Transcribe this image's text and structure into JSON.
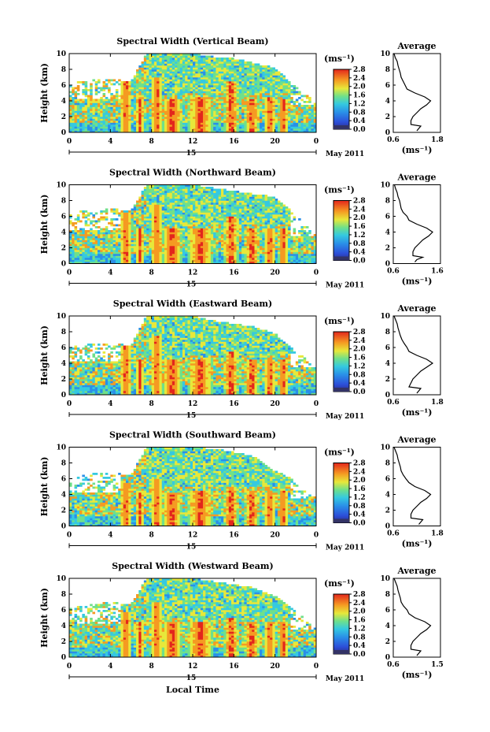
{
  "page": {
    "date_label": "May 2011",
    "day_label": "15",
    "xlabel": "Local Time",
    "ylabel": "Height (km)",
    "cb_unit": "(ms⁻¹)",
    "avg_title": "Average",
    "avg_unit": "(ms⁻¹)"
  },
  "chart_data": [
    {
      "type": "heatmap",
      "title": "Spectral Width (Vertical Beam)",
      "xlabel": "Local Time",
      "ylabel": "Height (km)",
      "xlim": [
        0,
        24
      ],
      "ylim": [
        0,
        10
      ],
      "xticks": [
        "0",
        "4",
        "8",
        "12",
        "16",
        "20",
        "0"
      ],
      "yticks": [
        "0",
        "2",
        "4",
        "6",
        "8",
        "10"
      ],
      "colorbar": {
        "unit": "(ms⁻¹)",
        "min": 0.0,
        "max": 2.8,
        "ticks": [
          "0.0",
          "0.4",
          "0.8",
          "1.2",
          "1.6",
          "2.0",
          "2.4",
          "2.8"
        ]
      },
      "cloud_top_km": [
        [
          0,
          6.2
        ],
        [
          2,
          6.6
        ],
        [
          4,
          6.8
        ],
        [
          6,
          6.4
        ],
        [
          7.5,
          10
        ],
        [
          12,
          10
        ],
        [
          14,
          9.6
        ],
        [
          16,
          9.4
        ],
        [
          18,
          8.8
        ],
        [
          20,
          8.2
        ],
        [
          22,
          5.8
        ],
        [
          23,
          5.0
        ],
        [
          24,
          3.6
        ]
      ],
      "convective_bursts": [
        {
          "start": 5.0,
          "end": 6.0,
          "top_km": 6.5
        },
        {
          "start": 6.5,
          "end": 7.3,
          "top_km": 4.5
        },
        {
          "start": 8.0,
          "end": 9.0,
          "top_km": 7.0
        },
        {
          "start": 9.0,
          "end": 11.0,
          "top_km": 4.2
        },
        {
          "start": 11.5,
          "end": 14.0,
          "top_km": 4.5
        },
        {
          "start": 15.0,
          "end": 16.5,
          "top_km": 6.5
        },
        {
          "start": 17.0,
          "end": 18.5,
          "top_km": 4.2
        },
        {
          "start": 19.0,
          "end": 20.0,
          "top_km": 4.5
        },
        {
          "start": 20.3,
          "end": 21.3,
          "top_km": 4.2
        }
      ],
      "average_profile": {
        "xlabel": "(ms⁻¹)",
        "xlim": [
          0.6,
          1.8
        ],
        "xticks": [
          "0.6",
          "1.8"
        ],
        "ylim": [
          0,
          10
        ],
        "yticks": [
          "0",
          "2",
          "4",
          "6",
          "8",
          "10"
        ],
        "height_km": [
          0.2,
          0.5,
          0.8,
          1.0,
          1.5,
          2.0,
          2.5,
          3.0,
          3.5,
          4.0,
          4.5,
          5.0,
          5.5,
          6.0,
          6.5,
          7.0,
          7.5,
          8.0,
          8.5,
          9.0,
          9.5,
          10.0
        ],
        "width_ms": [
          1.2,
          1.25,
          1.3,
          1.05,
          1.05,
          1.1,
          1.2,
          1.3,
          1.45,
          1.55,
          1.4,
          1.15,
          0.95,
          0.9,
          0.85,
          0.8,
          0.78,
          0.75,
          0.72,
          0.7,
          0.65,
          0.62
        ]
      }
    },
    {
      "type": "heatmap",
      "title": "Spectral Width (Northward Beam)",
      "xlabel": "Local Time",
      "ylabel": "Height (km)",
      "xlim": [
        0,
        24
      ],
      "ylim": [
        0,
        10
      ],
      "xticks": [
        "0",
        "4",
        "8",
        "12",
        "16",
        "20",
        "0"
      ],
      "yticks": [
        "0",
        "2",
        "4",
        "6",
        "8",
        "10"
      ],
      "colorbar": {
        "unit": "(ms⁻¹)",
        "min": 0.0,
        "max": 2.8,
        "ticks": [
          "0.0",
          "0.4",
          "0.8",
          "1.2",
          "1.6",
          "2.0",
          "2.4",
          "2.8"
        ]
      },
      "cloud_top_km": [
        [
          0,
          6.4
        ],
        [
          2,
          6.8
        ],
        [
          4,
          7.0
        ],
        [
          6,
          6.6
        ],
        [
          7.5,
          10
        ],
        [
          12,
          10
        ],
        [
          14,
          9.6
        ],
        [
          16,
          9.2
        ],
        [
          18,
          8.8
        ],
        [
          20,
          8.5
        ],
        [
          22,
          6.2
        ],
        [
          23,
          4.8
        ],
        [
          24,
          3.5
        ]
      ],
      "convective_bursts": [
        {
          "start": 5.0,
          "end": 6.0,
          "top_km": 6.4
        },
        {
          "start": 6.5,
          "end": 7.3,
          "top_km": 4.5
        },
        {
          "start": 8.0,
          "end": 9.0,
          "top_km": 7.5
        },
        {
          "start": 9.0,
          "end": 11.0,
          "top_km": 4.4
        },
        {
          "start": 11.5,
          "end": 14.0,
          "top_km": 4.5
        },
        {
          "start": 15.0,
          "end": 16.5,
          "top_km": 6.0
        },
        {
          "start": 17.0,
          "end": 18.5,
          "top_km": 4.4
        },
        {
          "start": 19.0,
          "end": 20.0,
          "top_km": 4.5
        },
        {
          "start": 20.3,
          "end": 21.3,
          "top_km": 4.4
        }
      ],
      "average_profile": {
        "xlabel": "(ms⁻¹)",
        "xlim": [
          0.6,
          1.8
        ],
        "xticks": [
          "0.6",
          "1.6"
        ],
        "ylim": [
          0,
          10
        ],
        "yticks": [
          "0",
          "2",
          "4",
          "6",
          "8",
          "10"
        ],
        "height_km": [
          0.2,
          0.5,
          0.8,
          1.0,
          1.5,
          2.0,
          2.5,
          3.0,
          3.5,
          4.0,
          4.5,
          5.0,
          5.5,
          6.0,
          6.5,
          7.0,
          7.5,
          8.0,
          8.5,
          9.0,
          9.5,
          10.0
        ],
        "width_ms": [
          1.15,
          1.2,
          1.35,
          1.1,
          1.1,
          1.15,
          1.25,
          1.35,
          1.5,
          1.6,
          1.45,
          1.2,
          1.0,
          0.95,
          0.85,
          0.8,
          0.78,
          0.76,
          0.72,
          0.7,
          0.66,
          0.63
        ]
      }
    },
    {
      "type": "heatmap",
      "title": "Spectral Width (Eastward Beam)",
      "xlabel": "Local Time",
      "ylabel": "Height (km)",
      "xlim": [
        0,
        24
      ],
      "ylim": [
        0,
        10
      ],
      "xticks": [
        "0",
        "4",
        "8",
        "12",
        "16",
        "20",
        "0"
      ],
      "yticks": [
        "0",
        "2",
        "4",
        "6",
        "8",
        "10"
      ],
      "colorbar": {
        "unit": "(ms⁻¹)",
        "min": 0.0,
        "max": 2.8,
        "ticks": [
          "0.0",
          "0.4",
          "0.8",
          "1.2",
          "1.6",
          "2.0",
          "2.4",
          "2.8"
        ]
      },
      "cloud_top_km": [
        [
          0,
          6.0
        ],
        [
          2,
          6.4
        ],
        [
          4,
          6.6
        ],
        [
          6,
          6.2
        ],
        [
          7.5,
          10
        ],
        [
          12,
          10
        ],
        [
          14,
          9.4
        ],
        [
          16,
          9.0
        ],
        [
          18,
          8.6
        ],
        [
          20,
          7.8
        ],
        [
          22,
          5.5
        ],
        [
          23,
          4.5
        ],
        [
          24,
          3.4
        ]
      ],
      "convective_bursts": [
        {
          "start": 5.0,
          "end": 6.0,
          "top_km": 6.2
        },
        {
          "start": 6.5,
          "end": 7.3,
          "top_km": 4.5
        },
        {
          "start": 8.0,
          "end": 9.0,
          "top_km": 7.5
        },
        {
          "start": 9.0,
          "end": 11.0,
          "top_km": 4.4
        },
        {
          "start": 11.5,
          "end": 14.0,
          "top_km": 4.5
        },
        {
          "start": 15.0,
          "end": 16.5,
          "top_km": 5.5
        },
        {
          "start": 17.0,
          "end": 18.5,
          "top_km": 4.5
        },
        {
          "start": 19.0,
          "end": 20.0,
          "top_km": 4.4
        },
        {
          "start": 20.3,
          "end": 21.3,
          "top_km": 4.4
        }
      ],
      "average_profile": {
        "xlabel": "(ms⁻¹)",
        "xlim": [
          0.6,
          1.8
        ],
        "xticks": [
          "0.6",
          "1.8"
        ],
        "ylim": [
          0,
          10
        ],
        "yticks": [
          "0",
          "2",
          "4",
          "6",
          "8",
          "10"
        ],
        "height_km": [
          0.2,
          0.5,
          0.8,
          1.0,
          1.5,
          2.0,
          2.5,
          3.0,
          3.5,
          4.0,
          4.5,
          5.0,
          5.5,
          6.0,
          6.5,
          7.0,
          7.5,
          8.0,
          8.5,
          9.0,
          9.5,
          10.0
        ],
        "width_ms": [
          1.2,
          1.25,
          1.3,
          1.0,
          1.05,
          1.1,
          1.2,
          1.3,
          1.45,
          1.6,
          1.45,
          1.2,
          1.0,
          0.95,
          0.88,
          0.82,
          0.78,
          0.75,
          0.72,
          0.7,
          0.66,
          0.62
        ]
      }
    },
    {
      "type": "heatmap",
      "title": "Spectral Width (Southward Beam)",
      "xlabel": "Local Time",
      "ylabel": "Height (km)",
      "xlim": [
        0,
        24
      ],
      "ylim": [
        0,
        10
      ],
      "xticks": [
        "0",
        "4",
        "8",
        "12",
        "16",
        "20",
        "0"
      ],
      "yticks": [
        "0",
        "2",
        "4",
        "6",
        "8",
        "10"
      ],
      "colorbar": {
        "unit": "(ms⁻¹)",
        "min": 0.0,
        "max": 2.8,
        "ticks": [
          "0.0",
          "0.4",
          "0.8",
          "1.2",
          "1.6",
          "2.0",
          "2.4",
          "2.8"
        ]
      },
      "cloud_top_km": [
        [
          0,
          6.0
        ],
        [
          2,
          6.6
        ],
        [
          4,
          6.8
        ],
        [
          6,
          6.4
        ],
        [
          7.5,
          10
        ],
        [
          12,
          10
        ],
        [
          14,
          9.8
        ],
        [
          16,
          9.4
        ],
        [
          18,
          8.8
        ],
        [
          20,
          7.0
        ],
        [
          22,
          5.8
        ],
        [
          23,
          4.4
        ],
        [
          24,
          3.6
        ]
      ],
      "convective_bursts": [
        {
          "start": 5.0,
          "end": 6.0,
          "top_km": 5.5
        },
        {
          "start": 6.5,
          "end": 7.3,
          "top_km": 4.2
        },
        {
          "start": 8.0,
          "end": 9.0,
          "top_km": 6.0
        },
        {
          "start": 9.0,
          "end": 11.0,
          "top_km": 4.2
        },
        {
          "start": 11.5,
          "end": 14.0,
          "top_km": 4.5
        },
        {
          "start": 15.0,
          "end": 16.5,
          "top_km": 5.0
        },
        {
          "start": 17.0,
          "end": 18.5,
          "top_km": 4.4
        },
        {
          "start": 19.0,
          "end": 20.0,
          "top_km": 4.2
        },
        {
          "start": 20.3,
          "end": 21.3,
          "top_km": 4.6
        }
      ],
      "average_profile": {
        "xlabel": "(ms⁻¹)",
        "xlim": [
          0.6,
          1.8
        ],
        "xticks": [
          "0.6",
          "1.8"
        ],
        "ylim": [
          0,
          10
        ],
        "yticks": [
          "0",
          "2",
          "4",
          "6",
          "8",
          "10"
        ],
        "height_km": [
          0.2,
          0.5,
          0.8,
          1.0,
          1.5,
          2.0,
          2.5,
          3.0,
          3.5,
          4.0,
          4.5,
          5.0,
          5.5,
          6.0,
          6.5,
          7.0,
          7.5,
          8.0,
          8.5,
          9.0,
          9.5,
          10.0
        ],
        "width_ms": [
          1.25,
          1.3,
          1.35,
          1.05,
          1.05,
          1.1,
          1.2,
          1.3,
          1.45,
          1.55,
          1.4,
          1.15,
          1.0,
          0.92,
          0.85,
          0.8,
          0.78,
          0.75,
          0.72,
          0.7,
          0.66,
          0.62
        ]
      }
    },
    {
      "type": "heatmap",
      "title": "Spectral Width (Westward Beam)",
      "xlabel": "Local Time",
      "ylabel": "Height (km)",
      "xlim": [
        0,
        24
      ],
      "ylim": [
        0,
        10
      ],
      "xticks": [
        "0",
        "4",
        "8",
        "12",
        "16",
        "20",
        "0"
      ],
      "yticks": [
        "0",
        "2",
        "4",
        "6",
        "8",
        "10"
      ],
      "colorbar": {
        "unit": "(ms⁻¹)",
        "min": 0.0,
        "max": 2.8,
        "ticks": [
          "0.0",
          "0.4",
          "0.8",
          "1.2",
          "1.6",
          "2.0",
          "2.4",
          "2.8"
        ]
      },
      "cloud_top_km": [
        [
          0,
          6.2
        ],
        [
          2,
          6.6
        ],
        [
          4,
          7.0
        ],
        [
          6,
          6.6
        ],
        [
          7.5,
          10
        ],
        [
          12,
          10
        ],
        [
          14,
          9.6
        ],
        [
          16,
          9.2
        ],
        [
          18,
          8.8
        ],
        [
          20,
          7.8
        ],
        [
          22,
          6.0
        ],
        [
          23,
          4.6
        ],
        [
          24,
          3.6
        ]
      ],
      "convective_bursts": [
        {
          "start": 5.0,
          "end": 6.0,
          "top_km": 5.8
        },
        {
          "start": 6.5,
          "end": 7.3,
          "top_km": 4.4
        },
        {
          "start": 8.0,
          "end": 9.0,
          "top_km": 7.0
        },
        {
          "start": 9.0,
          "end": 11.0,
          "top_km": 4.4
        },
        {
          "start": 11.5,
          "end": 14.0,
          "top_km": 4.5
        },
        {
          "start": 15.0,
          "end": 16.5,
          "top_km": 5.0
        },
        {
          "start": 17.0,
          "end": 18.5,
          "top_km": 4.4
        },
        {
          "start": 19.0,
          "end": 20.0,
          "top_km": 4.4
        },
        {
          "start": 20.3,
          "end": 21.3,
          "top_km": 4.4
        }
      ],
      "average_profile": {
        "xlabel": "(ms⁻¹)",
        "xlim": [
          0.6,
          1.8
        ],
        "xticks": [
          "0.6",
          "1.5"
        ],
        "ylim": [
          0,
          10
        ],
        "yticks": [
          "0",
          "2",
          "4",
          "6",
          "8",
          "10"
        ],
        "height_km": [
          0.2,
          0.5,
          0.8,
          1.0,
          1.5,
          2.0,
          2.5,
          3.0,
          3.5,
          4.0,
          4.5,
          5.0,
          5.5,
          6.0,
          6.5,
          7.0,
          7.5,
          8.0,
          8.5,
          9.0,
          9.5,
          10.0
        ],
        "width_ms": [
          1.2,
          1.25,
          1.3,
          1.05,
          1.05,
          1.1,
          1.2,
          1.3,
          1.45,
          1.55,
          1.4,
          1.15,
          1.0,
          0.95,
          0.86,
          0.8,
          0.78,
          0.75,
          0.72,
          0.7,
          0.66,
          0.62
        ]
      }
    }
  ]
}
